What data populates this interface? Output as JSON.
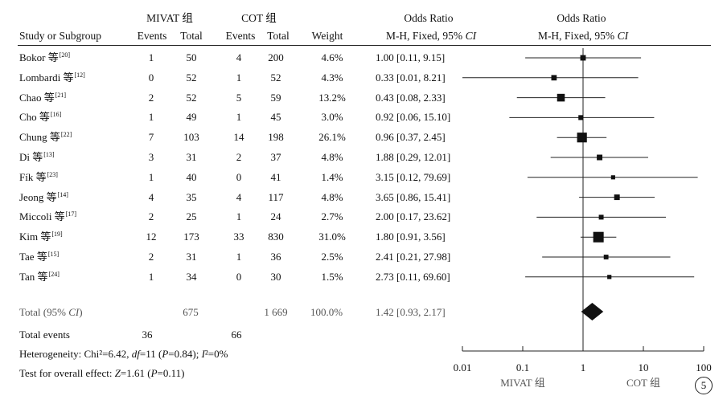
{
  "headers": {
    "group1": "MIVAT 组",
    "group2": "COT 组",
    "or_text_title": "Odds Ratio",
    "or_text_method": "M-H, Fixed, 95% CI",
    "or_plot_title": "Odds Ratio",
    "or_plot_method": "M-H, Fixed, 95% CI",
    "study": "Study or Subgroup",
    "events1": "Events",
    "total1": "Total",
    "events2": "Events",
    "total2": "Total",
    "weight": "Weight"
  },
  "studies": [
    {
      "name": "Bokor 等",
      "ref": "[20]",
      "e1": "1",
      "t1": "50",
      "e2": "4",
      "t2": "200",
      "weight": "4.6%",
      "ci_text": "1.00 [0.11, 9.15]"
    },
    {
      "name": "Lombardi 等",
      "ref": "[12]",
      "e1": "0",
      "t1": "52",
      "e2": "1",
      "t2": "52",
      "weight": "4.3%",
      "ci_text": "0.33 [0.01, 8.21]"
    },
    {
      "name": "Chao 等",
      "ref": "[21]",
      "e1": "2",
      "t1": "52",
      "e2": "5",
      "t2": "59",
      "weight": "13.2%",
      "ci_text": "0.43 [0.08, 2.33]"
    },
    {
      "name": "Cho 等",
      "ref": "[16]",
      "e1": "1",
      "t1": "49",
      "e2": "1",
      "t2": "45",
      "weight": "3.0%",
      "ci_text": "0.92 [0.06, 15.10]"
    },
    {
      "name": "Chung 等",
      "ref": "[22]",
      "e1": "7",
      "t1": "103",
      "e2": "14",
      "t2": "198",
      "weight": "26.1%",
      "ci_text": "0.96 [0.37, 2.45]"
    },
    {
      "name": "Di 等",
      "ref": "[13]",
      "e1": "3",
      "t1": "31",
      "e2": "2",
      "t2": "37",
      "weight": "4.8%",
      "ci_text": "1.88 [0.29, 12.01]"
    },
    {
      "name": "Fík 等",
      "ref": "[23]",
      "e1": "1",
      "t1": "40",
      "e2": "0",
      "t2": "41",
      "weight": "1.4%",
      "ci_text": "3.15 [0.12, 79.69]"
    },
    {
      "name": "Jeong 等",
      "ref": "[14]",
      "e1": "4",
      "t1": "35",
      "e2": "4",
      "t2": "117",
      "weight": "4.8%",
      "ci_text": "3.65 [0.86, 15.41]"
    },
    {
      "name": "Miccoli 等",
      "ref": "[17]",
      "e1": "2",
      "t1": "25",
      "e2": "1",
      "t2": "24",
      "weight": "2.7%",
      "ci_text": "2.00 [0.17, 23.62]"
    },
    {
      "name": "Kim 等",
      "ref": "[19]",
      "e1": "12",
      "t1": "173",
      "e2": "33",
      "t2": "830",
      "weight": "31.0%",
      "ci_text": "1.80 [0.91, 3.56]"
    },
    {
      "name": "Tae 等",
      "ref": "[15]",
      "e1": "2",
      "t1": "31",
      "e2": "1",
      "t2": "36",
      "weight": "2.5%",
      "ci_text": "2.41 [0.21, 27.98]"
    },
    {
      "name": "Tan 等",
      "ref": "[24]",
      "e1": "1",
      "t1": "34",
      "e2": "0",
      "t2": "30",
      "weight": "1.5%",
      "ci_text": "2.73 [0.11, 69.60]"
    }
  ],
  "total": {
    "label": "Total (95% CI)",
    "t1": "675",
    "t2": "1 669",
    "weight": "100.0%",
    "ci_text": "1.42 [0.93, 2.17]"
  },
  "total_events": {
    "label": "Total events",
    "e1": "36",
    "e2": "66"
  },
  "heterogeneity": "Heterogeneity: Chi²=6.42, df=11 (P=0.84); I²=0%",
  "overall_effect": "Test for overall effect: Z=1.61 (P=0.11)",
  "axis": {
    "ticks": [
      "0.01",
      "0.1",
      "1",
      "10",
      "100"
    ],
    "favours_left": "MIVAT 组",
    "favours_right": "COT 组"
  },
  "figure_label": "5",
  "chart_data": {
    "type": "forest",
    "x_scale": "log",
    "xlim": [
      0.01,
      100
    ],
    "null_line": 1,
    "points": [
      {
        "or": 1.0,
        "lo": 0.11,
        "hi": 9.15,
        "weight": 4.6
      },
      {
        "or": 0.33,
        "lo": 0.01,
        "hi": 8.21,
        "weight": 4.3
      },
      {
        "or": 0.43,
        "lo": 0.08,
        "hi": 2.33,
        "weight": 13.2
      },
      {
        "or": 0.92,
        "lo": 0.06,
        "hi": 15.1,
        "weight": 3.0
      },
      {
        "or": 0.96,
        "lo": 0.37,
        "hi": 2.45,
        "weight": 26.1
      },
      {
        "or": 1.88,
        "lo": 0.29,
        "hi": 12.01,
        "weight": 4.8
      },
      {
        "or": 3.15,
        "lo": 0.12,
        "hi": 79.69,
        "weight": 1.4
      },
      {
        "or": 3.65,
        "lo": 0.86,
        "hi": 15.41,
        "weight": 4.8
      },
      {
        "or": 2.0,
        "lo": 0.17,
        "hi": 23.62,
        "weight": 2.7
      },
      {
        "or": 1.8,
        "lo": 0.91,
        "hi": 3.56,
        "weight": 31.0
      },
      {
        "or": 2.41,
        "lo": 0.21,
        "hi": 27.98,
        "weight": 2.5
      },
      {
        "or": 2.73,
        "lo": 0.11,
        "hi": 69.6,
        "weight": 1.5
      }
    ],
    "pooled": {
      "or": 1.42,
      "lo": 0.93,
      "hi": 2.17
    }
  }
}
